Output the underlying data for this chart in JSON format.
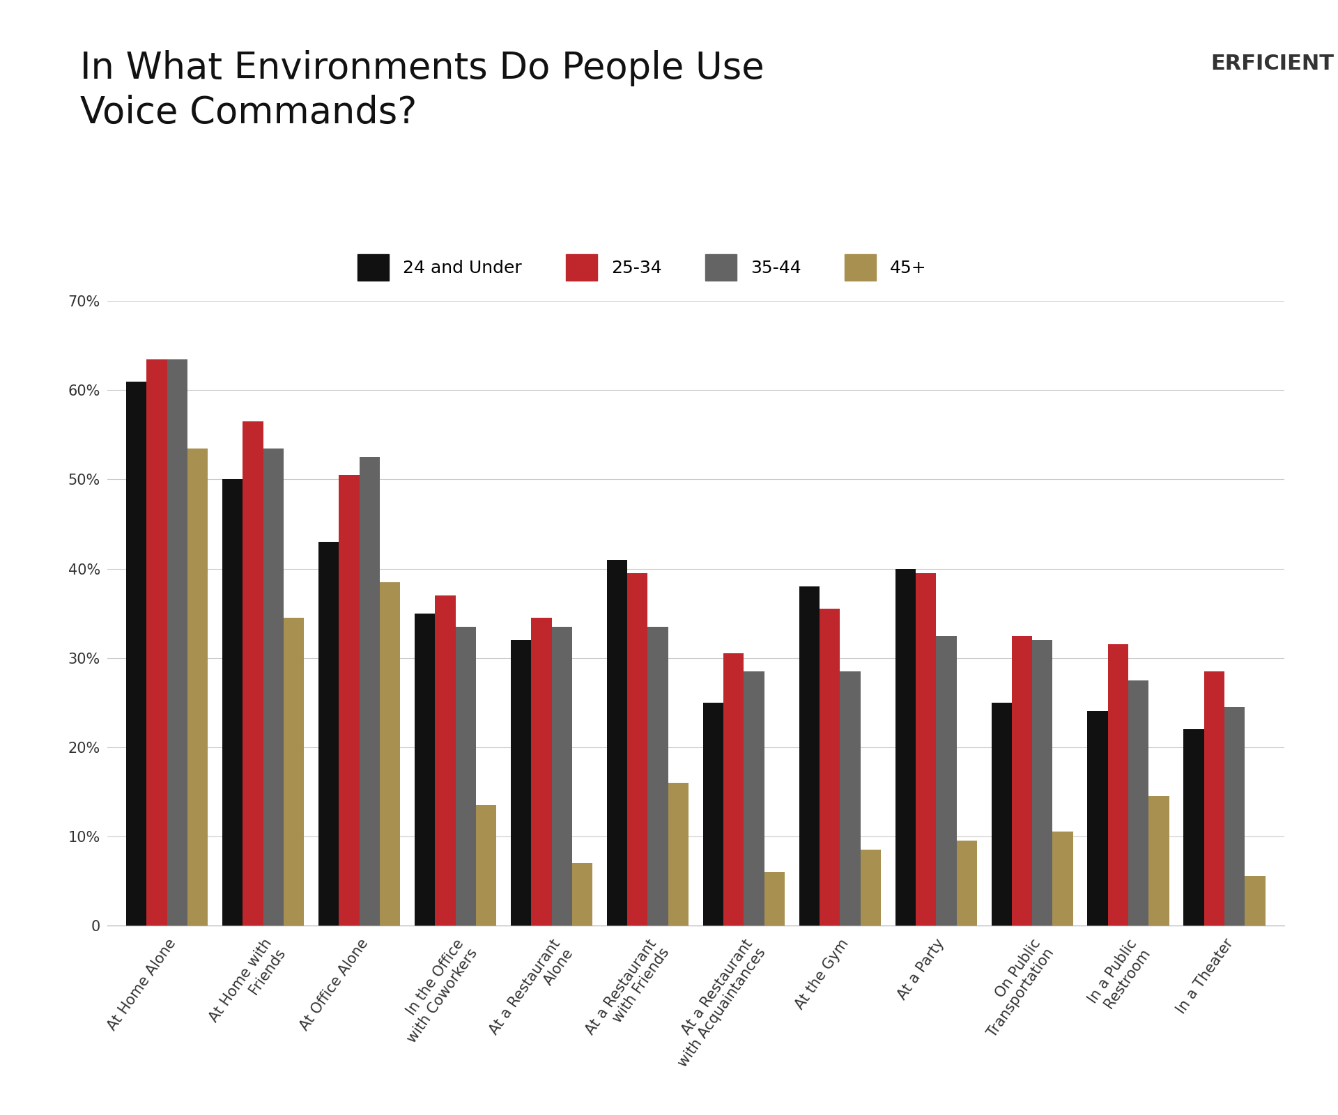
{
  "title": "In What Environments Do People Use\nVoice Commands?",
  "categories": [
    "At Home Alone",
    "At Home with\nFriends",
    "At Office Alone",
    "In the Office\nwith Coworkers",
    "At a Restaurant\nAlone",
    "At a Restaurant\nwith Friends",
    "At a Restaurant\nwith Acquaintances",
    "At the Gym",
    "At a Party",
    "On Public\nTransportation",
    "In a Public\nRestroom",
    "In a Theater"
  ],
  "series": {
    "24 and Under": [
      0.61,
      0.5,
      0.43,
      0.35,
      0.32,
      0.41,
      0.25,
      0.38,
      0.4,
      0.25,
      0.24,
      0.22
    ],
    "25-34": [
      0.635,
      0.565,
      0.505,
      0.37,
      0.345,
      0.395,
      0.305,
      0.355,
      0.395,
      0.325,
      0.315,
      0.285
    ],
    "35-44": [
      0.635,
      0.535,
      0.525,
      0.335,
      0.335,
      0.335,
      0.285,
      0.285,
      0.325,
      0.32,
      0.275,
      0.245
    ],
    "45+": [
      0.535,
      0.345,
      0.385,
      0.135,
      0.07,
      0.16,
      0.06,
      0.085,
      0.095,
      0.105,
      0.145,
      0.055
    ]
  },
  "colors": {
    "24 and Under": "#111111",
    "25-34": "#C0272D",
    "35-44": "#646464",
    "45+": "#A89050"
  },
  "ylim": [
    0,
    0.7
  ],
  "yticks": [
    0,
    0.1,
    0.2,
    0.3,
    0.4,
    0.5,
    0.6,
    0.7
  ],
  "ytick_labels": [
    "0",
    "10%",
    "20%",
    "30%",
    "40%",
    "50%",
    "60%",
    "70%"
  ],
  "background_color": "#FFFFFF",
  "grid_color": "#CCCCCC",
  "title_fontsize": 38,
  "tick_fontsize": 15,
  "legend_fontsize": 18
}
